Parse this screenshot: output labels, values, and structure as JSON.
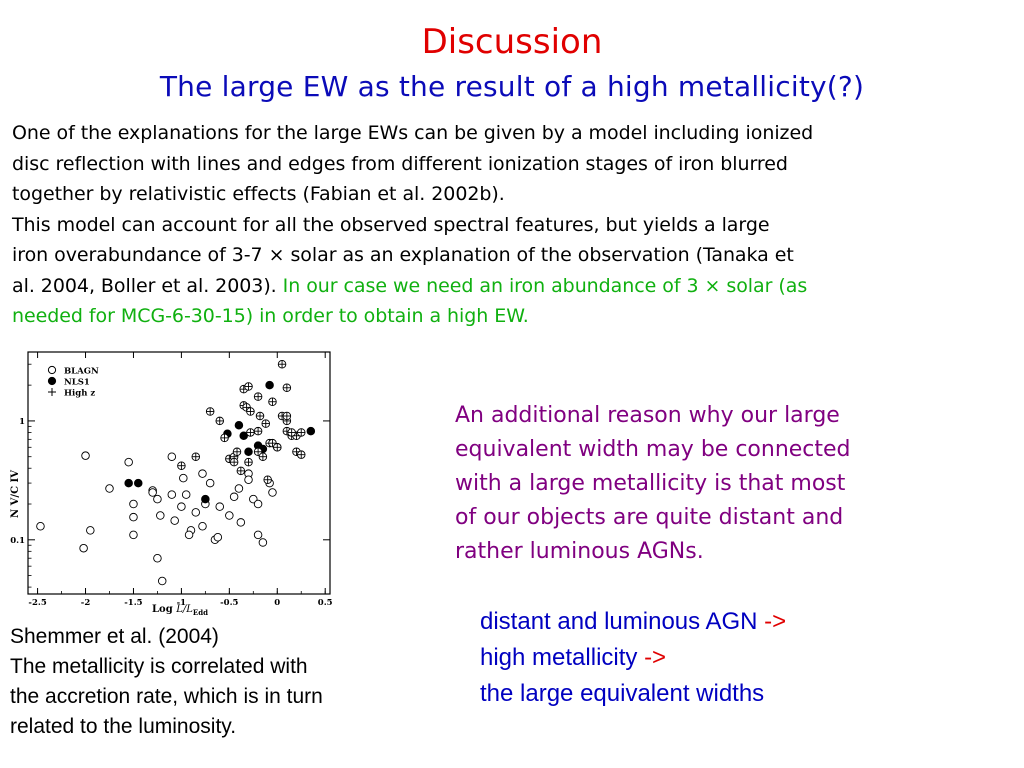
{
  "slide": {
    "title": "Discussion",
    "subtitle": "The large EW as the result of a high metallicity(?)",
    "intro": {
      "lines": [
        "One of the explanations for the large EWs can be given by a model including ionized",
        "disc reflection with lines and edges from different ionization stages of iron blurred",
        "together by relativistic effects (Fabian et al. 2002b).",
        "This model can account for all the observed spectral features, but yields a large",
        "iron overabundance of 3-7 × solar as an explanation of the observation (Tanaka et"
      ],
      "line6_black": "al. 2004, Boller et al. 2003). ",
      "line6_green": "In our case we need an iron abundance of 3 × solar (as",
      "line7_green": "needed for MCG-6-30-15) in order to obtain a high EW."
    },
    "reason": {
      "lines": [
        "An additional reason why our large",
        "equivalent width may be connected",
        "with a large metallicity is that most",
        "of our objects are quite distant and",
        "rather luminous AGNs."
      ]
    },
    "conclusion": {
      "line1": "distant and luminous AGN ",
      "line2": "high metallicity ",
      "line3": "the large equivalent widths",
      "arrow": "->"
    },
    "caption": {
      "lines": [
        "Shemmer et al. (2004)",
        "The metallicity is correlated with",
        "the accretion rate, which is in turn",
        "related to the luminosity."
      ]
    },
    "colors": {
      "title": "#e00000",
      "subtitle": "#0b0bb8",
      "highlight": "#10b010",
      "reason": "#800080",
      "conclusion": "#0000c0",
      "arrow": "#e00000"
    }
  },
  "chart_data": {
    "type": "scatter",
    "xlabel": "Log L/L_Edd",
    "xlabel_main": "Log ",
    "xlabel_italic": "L/L",
    "xlabel_sub": "Edd",
    "ylabel": "N V/C IV",
    "xlim": [
      -2.6,
      0.55
    ],
    "ylim": [
      0.035,
      3.8
    ],
    "ylog": true,
    "xticks": [
      -2.5,
      -2,
      -1.5,
      -1,
      -0.5,
      0,
      0.5
    ],
    "xtick_labels": [
      "-2.5",
      "-2",
      "-1.5",
      "-1",
      "-0.5",
      "0",
      "0.5"
    ],
    "yticks": [
      0.1,
      1
    ],
    "ytick_labels": [
      "0.1",
      "1"
    ],
    "legend_position": "top-left",
    "series": [
      {
        "name": "BLAGN",
        "marker": "open-circle",
        "points": [
          [
            -2.47,
            0.13
          ],
          [
            -2.0,
            0.51
          ],
          [
            -2.02,
            0.085
          ],
          [
            -1.95,
            0.12
          ],
          [
            -1.75,
            0.27
          ],
          [
            -1.55,
            0.45
          ],
          [
            -1.5,
            0.2
          ],
          [
            -1.5,
            0.155
          ],
          [
            -1.5,
            0.11
          ],
          [
            -1.3,
            0.26
          ],
          [
            -1.3,
            0.25
          ],
          [
            -1.25,
            0.22
          ],
          [
            -1.22,
            0.16
          ],
          [
            -1.25,
            0.07
          ],
          [
            -1.2,
            0.045
          ],
          [
            -1.1,
            0.5
          ],
          [
            -1.1,
            0.24
          ],
          [
            -1.07,
            0.145
          ],
          [
            -1.0,
            0.19
          ],
          [
            -0.98,
            0.33
          ],
          [
            -0.95,
            0.24
          ],
          [
            -0.9,
            0.12
          ],
          [
            -0.92,
            0.11
          ],
          [
            -0.85,
            0.17
          ],
          [
            -0.78,
            0.36
          ],
          [
            -0.78,
            0.13
          ],
          [
            -0.75,
            0.2
          ],
          [
            -0.7,
            0.3
          ],
          [
            -0.65,
            0.1
          ],
          [
            -0.62,
            0.105
          ],
          [
            -0.6,
            0.19
          ],
          [
            -0.5,
            0.16
          ],
          [
            -0.45,
            0.23
          ],
          [
            -0.4,
            0.27
          ],
          [
            -0.38,
            0.14
          ],
          [
            -0.3,
            0.36
          ],
          [
            -0.3,
            0.32
          ],
          [
            -0.25,
            0.22
          ],
          [
            -0.2,
            0.11
          ],
          [
            -0.2,
            0.2
          ],
          [
            -0.15,
            0.095
          ],
          [
            -0.08,
            0.3
          ],
          [
            -0.05,
            0.25
          ]
        ]
      },
      {
        "name": "NLS1",
        "marker": "filled-circle",
        "points": [
          [
            -1.45,
            0.3
          ],
          [
            -1.55,
            0.3
          ],
          [
            -0.75,
            0.22
          ],
          [
            -0.52,
            0.78
          ],
          [
            -0.4,
            0.92
          ],
          [
            -0.35,
            0.75
          ],
          [
            -0.3,
            0.55
          ],
          [
            -0.2,
            0.62
          ],
          [
            -0.15,
            0.58
          ],
          [
            0.0,
            0.6
          ],
          [
            0.35,
            0.82
          ],
          [
            -0.08,
            2.0
          ]
        ]
      },
      {
        "name": "High z",
        "marker": "crossed-circle",
        "points": [
          [
            -1.0,
            0.42
          ],
          [
            -0.85,
            0.5
          ],
          [
            -0.7,
            1.2
          ],
          [
            -0.6,
            1.0
          ],
          [
            -0.55,
            0.72
          ],
          [
            -0.5,
            0.48
          ],
          [
            -0.45,
            0.5
          ],
          [
            -0.42,
            0.55
          ],
          [
            -0.38,
            0.38
          ],
          [
            -0.35,
            1.35
          ],
          [
            -0.32,
            1.3
          ],
          [
            -0.3,
            0.45
          ],
          [
            -0.28,
            1.2
          ],
          [
            -0.28,
            0.8
          ],
          [
            -0.2,
            0.55
          ],
          [
            -0.18,
            1.1
          ],
          [
            -0.12,
            0.95
          ],
          [
            -0.1,
            0.32
          ],
          [
            -0.08,
            0.65
          ],
          [
            -0.05,
            0.65
          ],
          [
            0.05,
            1.1
          ],
          [
            0.1,
            1.0
          ],
          [
            0.1,
            0.82
          ],
          [
            -0.35,
            1.85
          ],
          [
            -0.3,
            1.95
          ],
          [
            -0.2,
            1.6
          ],
          [
            0.05,
            3.0
          ],
          [
            0.1,
            1.9
          ],
          [
            0.1,
            1.1
          ],
          [
            0.15,
            0.75
          ],
          [
            0.2,
            0.75
          ],
          [
            0.25,
            0.8
          ],
          [
            0.2,
            0.55
          ],
          [
            0.25,
            0.52
          ],
          [
            0.0,
            0.6
          ],
          [
            -0.05,
            1.45
          ],
          [
            -0.2,
            0.82
          ],
          [
            -0.15,
            0.5
          ],
          [
            0.15,
            0.8
          ],
          [
            -0.45,
            0.45
          ]
        ]
      }
    ]
  }
}
